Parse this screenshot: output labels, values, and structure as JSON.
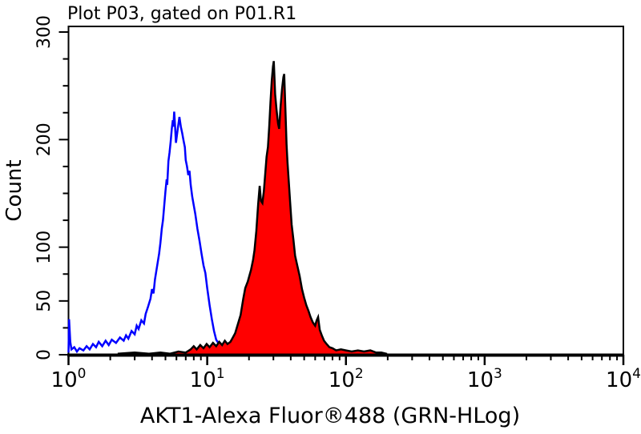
{
  "page": {
    "background": "#ffffff"
  },
  "chart_data": {
    "type": "area",
    "chart_kind": "flow-cytometry-histogram-overlay",
    "title": "Plot P03, gated on P01.R1",
    "xlabel": "AKT1-Alexa Fluor®488 (GRN-HLog)",
    "ylabel": "Count",
    "grid": false,
    "legend": "none",
    "x_axis": {
      "scale": "log",
      "min": 1,
      "max": 10000,
      "decades": [
        0,
        1,
        2,
        3,
        4
      ],
      "tick_label_base": "10"
    },
    "y_axis": {
      "min": 0,
      "max": 300,
      "minor_step": 25,
      "labeled": [
        0,
        50,
        100,
        200,
        300
      ]
    },
    "series": [
      {
        "id": "control-blue",
        "name": "blue open histogram (control)",
        "color": "#0000ff",
        "fill": "none",
        "points": [
          [
            1.0,
            2
          ],
          [
            1.01,
            33
          ],
          [
            1.03,
            12
          ],
          [
            1.05,
            5
          ],
          [
            1.1,
            7
          ],
          [
            1.15,
            3
          ],
          [
            1.2,
            6
          ],
          [
            1.28,
            4
          ],
          [
            1.35,
            8
          ],
          [
            1.42,
            5
          ],
          [
            1.5,
            10
          ],
          [
            1.58,
            7
          ],
          [
            1.65,
            12
          ],
          [
            1.75,
            8
          ],
          [
            1.85,
            13
          ],
          [
            1.95,
            9
          ],
          [
            2.05,
            14
          ],
          [
            2.2,
            11
          ],
          [
            2.35,
            16
          ],
          [
            2.5,
            13
          ],
          [
            2.6,
            18
          ],
          [
            2.7,
            15
          ],
          [
            2.85,
            22
          ],
          [
            3.0,
            19
          ],
          [
            3.1,
            27
          ],
          [
            3.2,
            24
          ],
          [
            3.35,
            32
          ],
          [
            3.5,
            29
          ],
          [
            3.6,
            38
          ],
          [
            3.75,
            45
          ],
          [
            3.9,
            52
          ],
          [
            4.0,
            61
          ],
          [
            4.1,
            57
          ],
          [
            4.2,
            70
          ],
          [
            4.35,
            82
          ],
          [
            4.5,
            94
          ],
          [
            4.6,
            104
          ],
          [
            4.7,
            117
          ],
          [
            4.8,
            125
          ],
          [
            4.9,
            139
          ],
          [
            5.0,
            152
          ],
          [
            5.1,
            163
          ],
          [
            5.15,
            158
          ],
          [
            5.25,
            180
          ],
          [
            5.35,
            188
          ],
          [
            5.45,
            198
          ],
          [
            5.55,
            210
          ],
          [
            5.65,
            218
          ],
          [
            5.7,
            212
          ],
          [
            5.78,
            226
          ],
          [
            5.85,
            215
          ],
          [
            5.95,
            197
          ],
          [
            6.1,
            208
          ],
          [
            6.3,
            221
          ],
          [
            6.45,
            212
          ],
          [
            6.6,
            206
          ],
          [
            6.75,
            199
          ],
          [
            6.9,
            193
          ],
          [
            7.0,
            181
          ],
          [
            7.15,
            175
          ],
          [
            7.3,
            167
          ],
          [
            7.45,
            171
          ],
          [
            7.6,
            158
          ],
          [
            7.8,
            147
          ],
          [
            8.0,
            139
          ],
          [
            8.2,
            131
          ],
          [
            8.5,
            117
          ],
          [
            8.8,
            106
          ],
          [
            9.1,
            94
          ],
          [
            9.4,
            83
          ],
          [
            9.7,
            76
          ],
          [
            10.0,
            62
          ],
          [
            10.4,
            46
          ],
          [
            10.8,
            33
          ],
          [
            11.2,
            22
          ],
          [
            11.6,
            14
          ],
          [
            12.0,
            11
          ],
          [
            12.5,
            9
          ],
          [
            13.0,
            10
          ],
          [
            13.6,
            7
          ],
          [
            14.2,
            9
          ],
          [
            15.0,
            6
          ],
          [
            15.8,
            4
          ],
          [
            16.5,
            2
          ]
        ]
      },
      {
        "id": "akt1-red",
        "name": "red filled histogram (AKT1-Alexa Fluor 488)",
        "color": "#000000",
        "fill": "#ff0000",
        "points": [
          [
            2.3,
            1
          ],
          [
            3.0,
            2
          ],
          [
            3.8,
            1
          ],
          [
            4.6,
            2
          ],
          [
            5.4,
            1
          ],
          [
            6.2,
            3
          ],
          [
            7.0,
            2
          ],
          [
            7.6,
            5
          ],
          [
            8.0,
            8
          ],
          [
            8.4,
            5
          ],
          [
            8.9,
            9
          ],
          [
            9.4,
            6
          ],
          [
            9.9,
            10
          ],
          [
            10.4,
            7
          ],
          [
            11.0,
            11
          ],
          [
            11.6,
            8
          ],
          [
            12.2,
            12
          ],
          [
            12.8,
            9
          ],
          [
            13.4,
            13
          ],
          [
            14.0,
            10
          ],
          [
            14.7,
            12
          ],
          [
            15.3,
            16
          ],
          [
            15.9,
            20
          ],
          [
            16.6,
            28
          ],
          [
            17.4,
            37
          ],
          [
            18.2,
            52
          ],
          [
            18.8,
            62
          ],
          [
            19.6,
            68
          ],
          [
            20.7,
            79
          ],
          [
            21.4,
            88
          ],
          [
            21.9,
            97
          ],
          [
            22.6,
            115
          ],
          [
            23.3,
            140
          ],
          [
            23.9,
            157
          ],
          [
            24.4,
            143
          ],
          [
            25.0,
            141
          ],
          [
            25.6,
            152
          ],
          [
            26.2,
            168
          ],
          [
            26.8,
            184
          ],
          [
            27.4,
            193
          ],
          [
            28.0,
            212
          ],
          [
            28.6,
            235
          ],
          [
            29.2,
            255
          ],
          [
            29.8,
            268
          ],
          [
            30.2,
            273
          ],
          [
            30.9,
            242
          ],
          [
            31.6,
            228
          ],
          [
            32.4,
            215
          ],
          [
            33.0,
            210
          ],
          [
            33.8,
            231
          ],
          [
            34.6,
            247
          ],
          [
            35.4,
            258
          ],
          [
            35.9,
            261
          ],
          [
            36.6,
            228
          ],
          [
            37.3,
            196
          ],
          [
            37.9,
            179
          ],
          [
            38.7,
            161
          ],
          [
            39.5,
            144
          ],
          [
            40.6,
            121
          ],
          [
            41.8,
            107
          ],
          [
            43.0,
            92
          ],
          [
            44.6,
            83
          ],
          [
            46.4,
            73
          ],
          [
            48.2,
            61
          ],
          [
            50.0,
            53
          ],
          [
            51.8,
            46
          ],
          [
            53.6,
            41
          ],
          [
            55.6,
            35
          ],
          [
            57.8,
            30
          ],
          [
            60.0,
            27
          ],
          [
            61.5,
            32
          ],
          [
            63.0,
            35
          ],
          [
            64.8,
            23
          ],
          [
            67.0,
            18
          ],
          [
            69.5,
            13
          ],
          [
            72.5,
            10
          ],
          [
            76.0,
            7
          ],
          [
            80.0,
            6
          ],
          [
            85.0,
            4
          ],
          [
            92.0,
            5
          ],
          [
            100,
            4
          ],
          [
            110,
            3
          ],
          [
            122,
            4
          ],
          [
            135,
            3
          ],
          [
            150,
            4
          ],
          [
            165,
            2
          ],
          [
            180,
            2
          ],
          [
            195,
            1
          ]
        ]
      }
    ]
  }
}
